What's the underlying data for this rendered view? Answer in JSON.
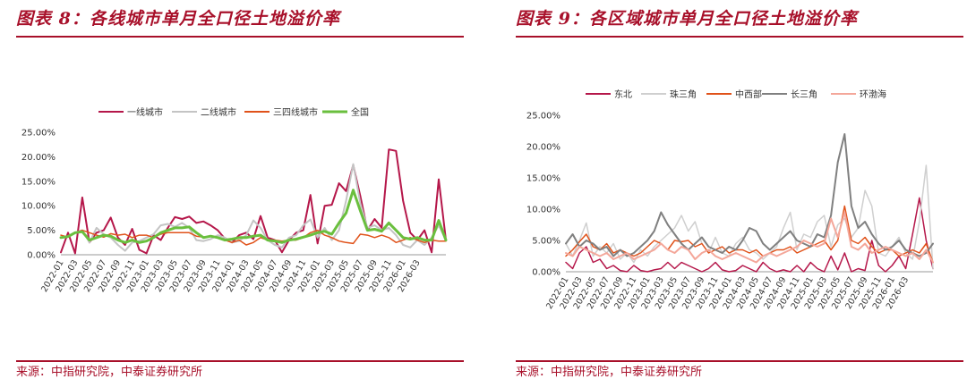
{
  "panels": [
    {
      "title": "图表 8：各线城市单月全口径土地溢价率",
      "source": "来源：中指研究院，中泰证券研究所",
      "chart_data": {
        "type": "line",
        "yticks": [
          "0.00%",
          "5.00%",
          "10.00%",
          "15.00%",
          "20.00%",
          "25.00%"
        ],
        "ylim": [
          0,
          25
        ],
        "x_tick_labels": [
          "2022-01",
          "2022-03",
          "2022-05",
          "2022-07",
          "2022-09",
          "2022-11",
          "2023-01",
          "2023-03",
          "2023-05",
          "2023-07",
          "2023-09",
          "2023-11",
          "2024-01",
          "2024-03",
          "2024-05",
          "2024-07",
          "2024-09",
          "2024-11",
          "2025-01",
          "2025-03",
          "2025-05",
          "2025-07",
          "2025-09",
          "2025-11",
          "2026-01",
          "2026-03"
        ],
        "x_start": "2022-01",
        "legend_position": "top",
        "grid": false,
        "series": [
          {
            "name": "一线城市",
            "color": "#b5174a",
            "width": 2,
            "values": [
              0.5,
              4.5,
              0.3,
              11.7,
              2.5,
              4.5,
              5.0,
              7.6,
              3.5,
              2.0,
              5.3,
              1.0,
              0.3,
              4.0,
              3.0,
              5.5,
              7.7,
              7.3,
              7.8,
              6.5,
              6.8,
              6.0,
              5.0,
              3.3,
              2.5,
              4.0,
              4.5,
              3.2,
              7.9,
              3.5,
              3.0,
              0.5,
              3.0,
              4.5,
              5.0,
              12.2,
              2.3,
              10.0,
              10.2,
              14.6,
              13.0,
              18.3,
              12.0,
              5.0,
              7.3,
              5.5,
              21.5,
              21.2,
              11.0,
              4.5,
              3.0,
              5.0,
              0.5,
              15.4,
              3.0
            ]
          },
          {
            "name": "二线城市",
            "color": "#c4c4c4",
            "width": 2,
            "values": [
              3.5,
              3.8,
              4.5,
              5.0,
              2.5,
              5.5,
              4.2,
              3.5,
              2.0,
              0.8,
              2.5,
              2.8,
              3.5,
              4.2,
              6.0,
              6.3,
              5.7,
              6.5,
              5.5,
              3.0,
              2.8,
              3.2,
              4.0,
              3.5,
              2.5,
              2.8,
              4.0,
              7.0,
              5.5,
              3.0,
              2.0,
              1.5,
              3.5,
              4.0,
              6.0,
              7.2,
              3.5,
              5.5,
              3.0,
              5.0,
              11.0,
              18.5,
              10.5,
              5.5,
              6.0,
              5.0,
              5.5,
              4.0,
              2.0,
              1.5,
              3.0,
              2.0,
              3.5,
              6.0,
              3.0
            ]
          },
          {
            "name": "三四线城市",
            "color": "#e0521a",
            "width": 1.5,
            "values": [
              4.0,
              3.6,
              4.5,
              5.0,
              4.5,
              4.0,
              3.6,
              4.3,
              4.0,
              4.2,
              3.5,
              4.0,
              4.0,
              3.5,
              4.2,
              4.5,
              4.5,
              4.5,
              4.5,
              3.8,
              3.6,
              3.8,
              3.5,
              3.0,
              2.5,
              3.0,
              2.0,
              2.5,
              3.5,
              3.0,
              3.0,
              2.8,
              3.0,
              3.0,
              3.5,
              4.5,
              5.0,
              4.0,
              3.5,
              2.8,
              2.5,
              2.3,
              4.2,
              4.0,
              3.5,
              4.0,
              3.5,
              2.5,
              3.0,
              3.5,
              3.0,
              2.5,
              3.0,
              2.8,
              2.8
            ]
          },
          {
            "name": "全国",
            "color": "#6abf3e",
            "width": 3,
            "values": [
              3.5,
              3.7,
              4.5,
              4.7,
              3.0,
              3.5,
              4.0,
              3.8,
              3.0,
              2.5,
              3.0,
              2.5,
              2.8,
              3.5,
              4.5,
              5.0,
              5.5,
              5.5,
              5.7,
              4.5,
              3.5,
              3.8,
              3.5,
              3.0,
              3.2,
              3.5,
              3.5,
              3.8,
              4.0,
              3.0,
              2.8,
              2.5,
              3.0,
              3.2,
              3.6,
              4.0,
              4.5,
              4.8,
              4.2,
              6.5,
              8.5,
              13.2,
              9.0,
              5.0,
              5.2,
              4.8,
              6.5,
              5.0,
              3.5,
              3.2,
              3.5,
              3.0,
              3.0,
              7.0,
              3.0
            ]
          }
        ]
      }
    },
    {
      "title": "图表 9：各区域城市单月全口径土地溢价率",
      "source": "来源：中指研究院，中泰证券研究所",
      "chart_data": {
        "type": "line",
        "yticks": [
          "0.00%",
          "5.00%",
          "10.00%",
          "15.00%",
          "20.00%",
          "25.00%"
        ],
        "ylim": [
          0,
          25
        ],
        "x_tick_labels": [
          "2022-01",
          "2022-03",
          "2022-05",
          "2022-07",
          "2022-09",
          "2022-11",
          "2023-01",
          "2023-03",
          "2023-05",
          "2023-07",
          "2023-09",
          "2023-11",
          "2024-01",
          "2024-03",
          "2024-05",
          "2024-07",
          "2024-09",
          "2024-11",
          "2025-01",
          "2025-03",
          "2025-05",
          "2025-07",
          "2025-09",
          "2025-11",
          "2026-01",
          "2026-03"
        ],
        "x_start": "2022-01",
        "legend_position": "top",
        "grid": false,
        "series": [
          {
            "name": "东北",
            "color": "#b5174a",
            "width": 1.5,
            "values": [
              1.5,
              0.5,
              3.0,
              4.0,
              1.5,
              2.0,
              0.5,
              1.0,
              0.2,
              0.0,
              1.0,
              0.2,
              0.0,
              0.3,
              0.5,
              1.5,
              0.5,
              1.5,
              1.0,
              0.5,
              0.0,
              0.5,
              1.5,
              0.3,
              0.0,
              0.2,
              1.0,
              0.5,
              0.0,
              1.5,
              0.5,
              0.0,
              0.3,
              0.0,
              1.0,
              0.0,
              1.5,
              0.5,
              0.0,
              2.5,
              0.3,
              3.0,
              0.0,
              0.5,
              0.2,
              5.0,
              1.0,
              0.0,
              1.0,
              2.5,
              0.5,
              6.0,
              11.8,
              5.0,
              0.5
            ]
          },
          {
            "name": "珠三角",
            "color": "#cfcfcf",
            "width": 1.5,
            "values": [
              4.5,
              2.5,
              5.0,
              7.8,
              2.5,
              4.0,
              3.0,
              4.5,
              2.0,
              3.0,
              1.5,
              3.5,
              2.5,
              4.0,
              5.0,
              6.0,
              7.0,
              9.0,
              6.5,
              8.0,
              4.5,
              3.0,
              5.5,
              3.0,
              2.5,
              4.5,
              5.5,
              3.5,
              3.0,
              2.0,
              3.0,
              4.0,
              7.0,
              9.5,
              3.5,
              6.0,
              5.5,
              8.0,
              9.0,
              4.0,
              7.5,
              8.5,
              5.5,
              7.0,
              13.0,
              10.5,
              3.0,
              2.5,
              4.0,
              5.5,
              3.0,
              2.0,
              8.0,
              17.0,
              0.5
            ]
          },
          {
            "name": "中西部",
            "color": "#e0521a",
            "width": 1.5,
            "values": [
              2.5,
              3.5,
              4.8,
              6.0,
              4.0,
              3.5,
              4.5,
              3.0,
              3.5,
              3.0,
              2.5,
              3.0,
              4.0,
              5.0,
              4.5,
              3.5,
              5.0,
              4.8,
              5.0,
              4.0,
              4.5,
              3.0,
              3.5,
              4.0,
              3.0,
              3.5,
              3.5,
              3.0,
              3.5,
              2.5,
              3.0,
              3.5,
              3.5,
              4.0,
              3.0,
              3.5,
              4.0,
              4.5,
              5.0,
              3.5,
              5.0,
              10.5,
              5.0,
              4.5,
              5.5,
              4.0,
              3.0,
              3.5,
              3.5,
              2.5,
              3.0,
              3.5,
              3.0,
              4.5,
              1.5
            ]
          },
          {
            "name": "长三角",
            "color": "#808080",
            "width": 2,
            "values": [
              4.5,
              6.0,
              4.0,
              5.0,
              4.5,
              3.5,
              4.0,
              2.5,
              3.5,
              2.5,
              3.0,
              4.0,
              5.0,
              6.5,
              9.5,
              7.5,
              6.0,
              4.5,
              3.5,
              4.5,
              5.5,
              4.0,
              3.5,
              3.0,
              4.0,
              3.5,
              5.0,
              7.0,
              6.5,
              4.5,
              3.5,
              4.5,
              5.5,
              6.5,
              5.0,
              4.5,
              4.0,
              6.0,
              5.5,
              9.0,
              17.5,
              22.0,
              10.5,
              7.0,
              8.0,
              6.0,
              4.5,
              3.5,
              4.0,
              5.0,
              3.5,
              3.0,
              2.5,
              3.0,
              4.5
            ]
          },
          {
            "name": "环渤海",
            "color": "#f4a79a",
            "width": 2,
            "values": [
              3.0,
              2.5,
              4.0,
              3.5,
              3.0,
              2.5,
              3.0,
              2.0,
              2.5,
              3.0,
              2.0,
              2.5,
              3.0,
              3.5,
              4.5,
              3.5,
              3.0,
              4.0,
              3.5,
              2.0,
              3.0,
              3.5,
              2.5,
              2.0,
              2.5,
              3.0,
              2.5,
              2.0,
              1.5,
              2.5,
              3.0,
              2.5,
              3.0,
              3.5,
              4.0,
              5.0,
              4.5,
              4.0,
              4.5,
              8.5,
              5.5,
              9.5,
              4.0,
              3.5,
              4.5,
              3.0,
              3.5,
              4.0,
              3.5,
              3.0,
              2.5,
              3.0,
              2.0,
              3.5,
              1.5
            ]
          }
        ]
      }
    }
  ]
}
